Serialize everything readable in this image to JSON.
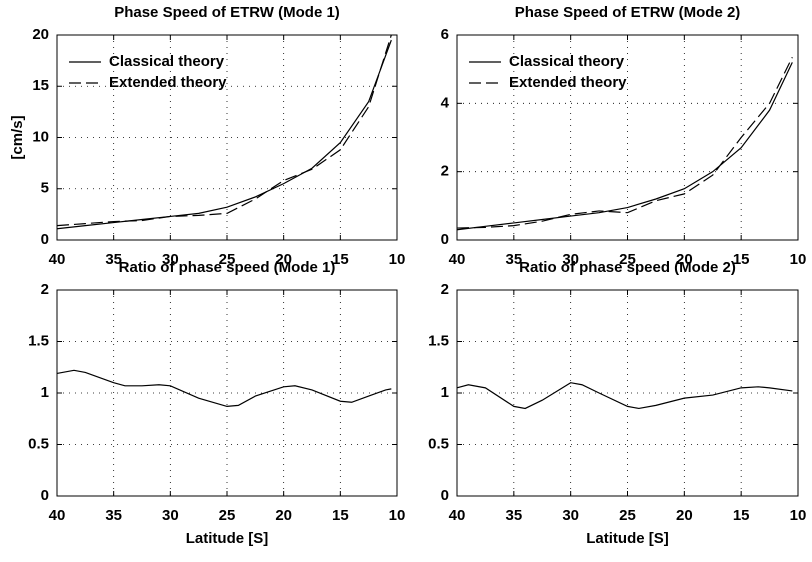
{
  "chart_data": [
    {
      "type": "line",
      "title": "Phase Speed of ETRW (Mode 1)",
      "ylabel": "[cm/s]",
      "x": [
        40,
        37.5,
        35,
        32.5,
        30,
        27.5,
        25,
        22.5,
        20,
        17.5,
        15,
        12.5,
        10.5
      ],
      "series": [
        {
          "name": "Classical theory",
          "color": "#000000",
          "dash": "solid",
          "values": [
            1.1,
            1.4,
            1.7,
            2.0,
            2.3,
            2.6,
            3.2,
            4.2,
            5.5,
            7.0,
            9.5,
            13.5,
            19.5
          ]
        },
        {
          "name": "Extended theory",
          "color": "#000000",
          "dash": "dashed",
          "values": [
            1.4,
            1.6,
            1.8,
            1.9,
            2.3,
            2.4,
            2.6,
            4.0,
            5.8,
            6.9,
            8.8,
            13.0,
            20
          ]
        }
      ],
      "xlim": [
        40,
        10
      ],
      "xticks": [
        40,
        35,
        30,
        25,
        20,
        15,
        10
      ],
      "ylim": [
        0,
        20
      ],
      "yticks": [
        0,
        5,
        10,
        15,
        20
      ],
      "grid": true,
      "legend": "upper-left"
    },
    {
      "type": "line",
      "title": "Phase Speed of ETRW (Mode 2)",
      "x": [
        40,
        37.5,
        35,
        32.5,
        30,
        27.5,
        25,
        22.5,
        20,
        17.5,
        15,
        12.5,
        10.5
      ],
      "series": [
        {
          "name": "Classical theory",
          "color": "#000000",
          "dash": "solid",
          "values": [
            0.3,
            0.4,
            0.5,
            0.6,
            0.7,
            0.8,
            0.95,
            1.2,
            1.5,
            2.0,
            2.7,
            3.8,
            5.2
          ]
        },
        {
          "name": "Extended theory",
          "color": "#000000",
          "dash": "dashed",
          "values": [
            0.35,
            0.37,
            0.42,
            0.55,
            0.75,
            0.85,
            0.8,
            1.15,
            1.35,
            1.9,
            3.0,
            4.0,
            5.35
          ]
        }
      ],
      "xlim": [
        40,
        10
      ],
      "xticks": [
        40,
        35,
        30,
        25,
        20,
        15,
        10
      ],
      "ylim": [
        0,
        6
      ],
      "yticks": [
        0,
        2,
        4,
        6
      ],
      "grid": true,
      "legend": "upper-left"
    },
    {
      "type": "line",
      "title": "Ratio of phase speed (Mode 1)",
      "xlabel": "Latitude [S]",
      "x": [
        40,
        38.5,
        37.5,
        35,
        34,
        32.5,
        31,
        30,
        27.5,
        25,
        24,
        22.5,
        20,
        19,
        17.5,
        15,
        14,
        12.5,
        11,
        10.5
      ],
      "values": [
        1.19,
        1.22,
        1.2,
        1.1,
        1.07,
        1.07,
        1.08,
        1.07,
        0.95,
        0.87,
        0.88,
        0.97,
        1.06,
        1.07,
        1.03,
        0.92,
        0.91,
        0.97,
        1.03,
        1.04
      ],
      "color": "#000000",
      "xlim": [
        40,
        10
      ],
      "xticks": [
        40,
        35,
        30,
        25,
        20,
        15,
        10
      ],
      "ylim": [
        0,
        2
      ],
      "yticks": [
        0,
        0.5,
        1,
        1.5,
        2
      ],
      "grid": true
    },
    {
      "type": "line",
      "title": "Ratio of phase speed (Mode 2)",
      "xlabel": "Latitude [S]",
      "x": [
        40,
        39,
        37.5,
        35,
        34,
        32.5,
        30,
        29,
        27.5,
        25,
        24,
        22.5,
        20,
        17.5,
        15,
        13.5,
        12.5,
        10.5
      ],
      "values": [
        1.05,
        1.08,
        1.05,
        0.87,
        0.85,
        0.93,
        1.1,
        1.08,
        1.0,
        0.87,
        0.85,
        0.88,
        0.95,
        0.98,
        1.05,
        1.06,
        1.05,
        1.02
      ],
      "color": "#000000",
      "xlim": [
        40,
        10
      ],
      "xticks": [
        40,
        35,
        30,
        25,
        20,
        15,
        10
      ],
      "ylim": [
        0,
        2
      ],
      "yticks": [
        0,
        0.5,
        1,
        1.5,
        2
      ],
      "grid": true
    }
  ]
}
